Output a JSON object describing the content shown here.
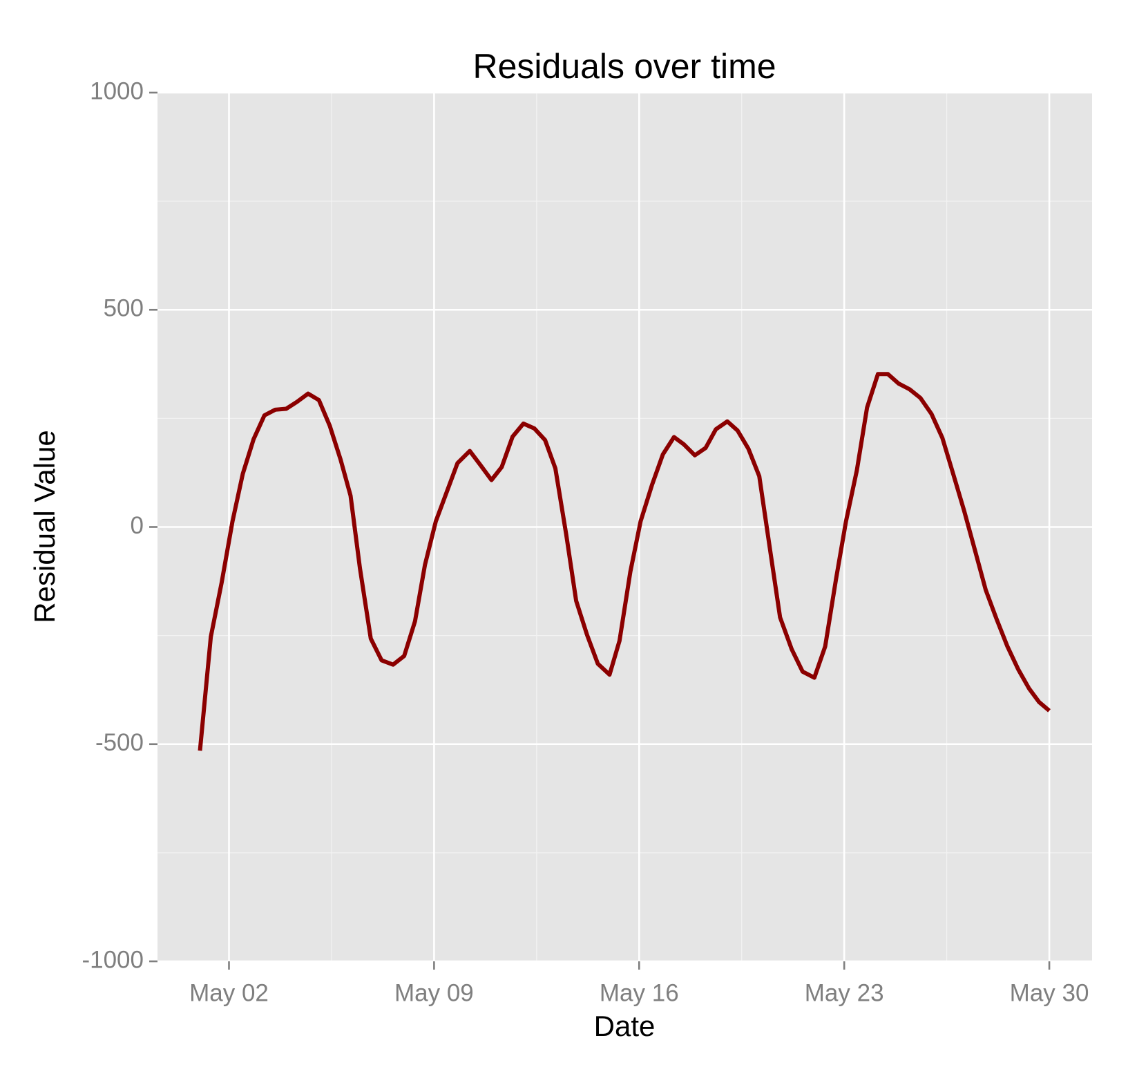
{
  "chart_data": {
    "type": "line",
    "title": "Residuals over time",
    "x_label": "Date",
    "y_label": "Residual Value",
    "x": [
      1.01,
      1.38,
      1.75,
      2.12,
      2.47,
      2.84,
      3.21,
      3.58,
      3.95,
      4.32,
      4.7,
      5.07,
      5.44,
      5.81,
      6.15,
      6.47,
      6.84,
      7.21,
      7.6,
      7.98,
      8.35,
      8.69,
      9.06,
      9.43,
      9.8,
      10.22,
      10.59,
      10.96,
      11.31,
      11.68,
      12.05,
      12.42,
      12.79,
      13.14,
      13.51,
      13.85,
      14.22,
      14.59,
      14.99,
      15.33,
      15.7,
      16.05,
      16.44,
      16.81,
      17.19,
      17.53,
      17.9,
      18.27,
      18.62,
      19.01,
      19.36,
      19.73,
      20.1,
      20.47,
      20.81,
      21.21,
      21.58,
      21.98,
      22.35,
      22.72,
      23.06,
      23.43,
      23.78,
      24.15,
      24.49,
      24.86,
      25.23,
      25.6,
      25.98,
      26.35,
      26.72,
      27.09,
      27.46,
      27.83,
      28.2,
      28.57,
      28.94,
      29.31,
      29.65,
      30.0
    ],
    "series": [
      {
        "name": "Residuals",
        "color": "#8b0000",
        "values": [
          -515,
          -253,
          -128,
          13,
          122,
          202,
          257,
          270,
          272,
          288,
          307,
          292,
          233,
          155,
          72,
          -95,
          -257,
          -307,
          -317,
          -297,
          -217,
          -87,
          13,
          80,
          147,
          175,
          142,
          108,
          138,
          208,
          238,
          227,
          200,
          135,
          -17,
          -170,
          -248,
          -315,
          -340,
          -262,
          -103,
          13,
          97,
          167,
          207,
          190,
          165,
          182,
          225,
          243,
          222,
          180,
          117,
          -53,
          -208,
          -282,
          -333,
          -347,
          -275,
          -120,
          13,
          130,
          275,
          352,
          352,
          330,
          317,
          297,
          260,
          205,
          122,
          38,
          -53,
          -145,
          -212,
          -275,
          -328,
          -372,
          -403,
          -423
        ]
      }
    ],
    "xlim": [
      -0.44,
      31.46
    ],
    "xticks": [
      {
        "value": 2,
        "label": "May 02"
      },
      {
        "value": 9,
        "label": "May 09"
      },
      {
        "value": 16,
        "label": "May 16"
      },
      {
        "value": 23,
        "label": "May 23"
      },
      {
        "value": 30,
        "label": "May 30"
      }
    ],
    "x_minor_grid": [
      5.5,
      12.5,
      19.5,
      26.5
    ],
    "ylim": [
      -1000,
      1000
    ],
    "yticks": [
      -1000,
      -500,
      0,
      500,
      1000
    ],
    "y_minor_grid": [
      -750,
      -250,
      250,
      750
    ],
    "grid": true
  }
}
